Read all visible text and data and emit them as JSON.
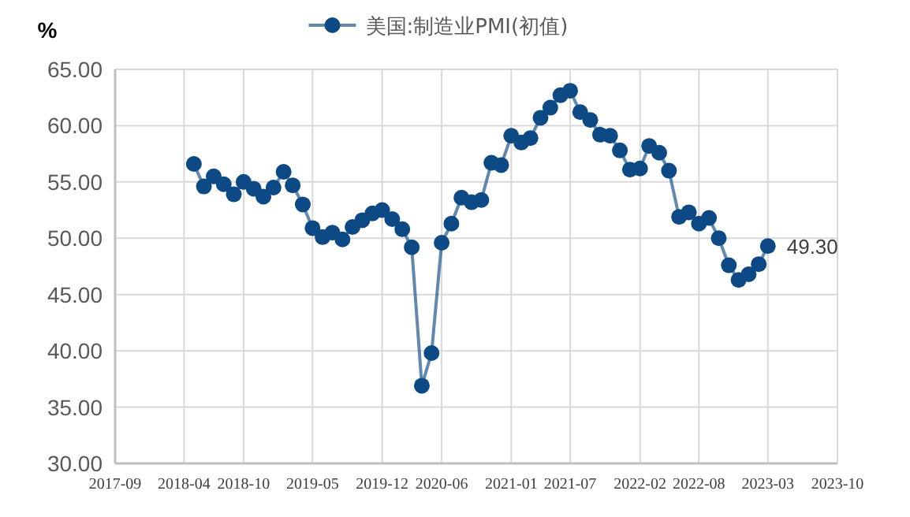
{
  "chart_data": {
    "type": "line",
    "ylabel": "%",
    "legend": "top",
    "grid": true,
    "marker": "circle",
    "line_style": "solid",
    "x": [
      "2018-05",
      "2018-06",
      "2018-07",
      "2018-08",
      "2018-09",
      "2018-10",
      "2018-11",
      "2018-12",
      "2019-01",
      "2019-02",
      "2019-03",
      "2019-04",
      "2019-05",
      "2019-06",
      "2019-07",
      "2019-08",
      "2019-09",
      "2019-10",
      "2019-11",
      "2019-12",
      "2020-01",
      "2020-02",
      "2020-03",
      "2020-04",
      "2020-05",
      "2020-06",
      "2020-07",
      "2020-08",
      "2020-09",
      "2020-10",
      "2020-11",
      "2020-12",
      "2021-01",
      "2021-02",
      "2021-03",
      "2021-04",
      "2021-05",
      "2021-06",
      "2021-07",
      "2021-08",
      "2021-09",
      "2021-10",
      "2021-11",
      "2021-12",
      "2022-01",
      "2022-02",
      "2022-03",
      "2022-04",
      "2022-05",
      "2022-06",
      "2022-07",
      "2022-08",
      "2022-09",
      "2022-10",
      "2022-11",
      "2022-12",
      "2023-01",
      "2023-02",
      "2023-03"
    ],
    "series": [
      {
        "name": "美国:制造业PMI(初值)",
        "color": "#0d4a85",
        "values": [
          56.6,
          54.6,
          55.5,
          54.8,
          53.9,
          55.0,
          54.4,
          53.7,
          54.5,
          55.9,
          54.7,
          53.0,
          50.9,
          50.1,
          50.5,
          49.9,
          51.0,
          51.6,
          52.2,
          52.5,
          51.7,
          50.8,
          49.2,
          36.9,
          39.8,
          49.6,
          51.3,
          53.6,
          53.2,
          53.4,
          56.7,
          56.5,
          59.1,
          58.5,
          58.9,
          60.7,
          61.6,
          62.7,
          63.1,
          61.2,
          60.5,
          59.2,
          59.1,
          57.8,
          56.1,
          56.2,
          58.2,
          57.6,
          56.0,
          51.9,
          52.3,
          51.3,
          51.8,
          50.0,
          47.6,
          46.3,
          46.8,
          47.7,
          49.3
        ],
        "value_labels": [
          null,
          null,
          null,
          null,
          null,
          null,
          null,
          null,
          null,
          null,
          null,
          null,
          null,
          null,
          null,
          null,
          null,
          null,
          null,
          null,
          null,
          null,
          null,
          null,
          null,
          null,
          null,
          null,
          null,
          null,
          null,
          null,
          null,
          null,
          null,
          null,
          null,
          null,
          null,
          null,
          null,
          null,
          null,
          null,
          null,
          null,
          null,
          null,
          null,
          null,
          null,
          null,
          null,
          null,
          null,
          null,
          null,
          null,
          "49.30"
        ]
      }
    ],
    "xlim": [
      "2017-09",
      "2023-10"
    ],
    "xticks": [
      "2017-09",
      "2018-04",
      "2018-10",
      "2019-05",
      "2019-12",
      "2020-06",
      "2021-01",
      "2021-07",
      "2022-02",
      "2022-08",
      "2023-03",
      "2023-10"
    ],
    "ylim": [
      30,
      65
    ],
    "yticks": [
      {
        "value": 30,
        "label": "30.00"
      },
      {
        "value": 35,
        "label": "35.00"
      },
      {
        "value": 40,
        "label": "40.00"
      },
      {
        "value": 45,
        "label": "45.00"
      },
      {
        "value": 50,
        "label": "50.00"
      },
      {
        "value": 55,
        "label": "55.00"
      },
      {
        "value": 60,
        "label": "60.00"
      },
      {
        "value": 65,
        "label": "65.00"
      }
    ]
  }
}
